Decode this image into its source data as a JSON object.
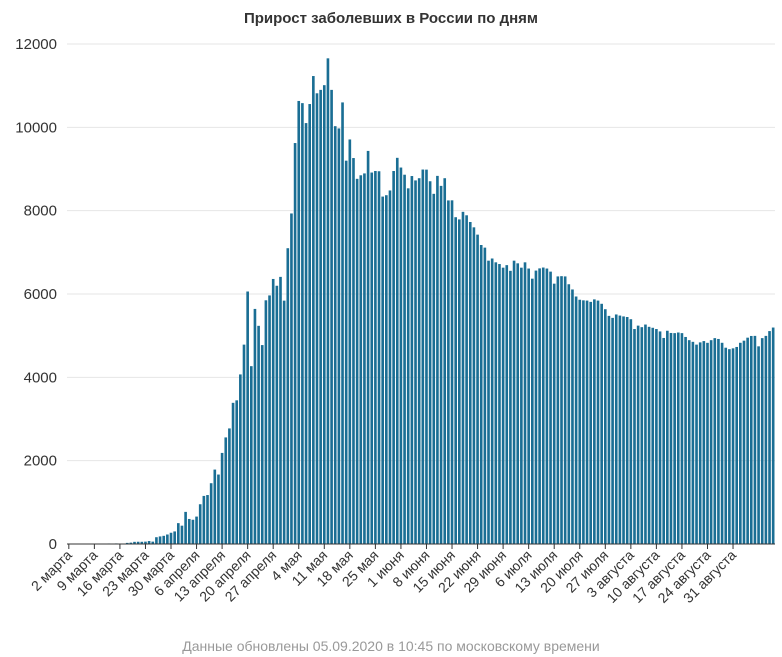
{
  "chart_data": {
    "type": "bar",
    "title": "Прирост заболевших в России по дням",
    "footer": "Данные обновлены 05.09.2020 в 10:45 по московскому времени",
    "bar_color": "#1a6e94",
    "grid_color": "#e6e6e6",
    "axis_color": "#333333",
    "ylim": [
      0,
      12000
    ],
    "yticks": [
      0,
      2000,
      4000,
      6000,
      8000,
      10000,
      12000
    ],
    "grid": true,
    "legend": "none",
    "x_start": "2020-03-02",
    "xtick_labels": [
      "2 марта",
      "9 марта",
      "16 марта",
      "23 марта",
      "30 марта",
      "6 апреля",
      "13 апреля",
      "20 апреля",
      "27 апреля",
      "4 мая",
      "11 мая",
      "18 мая",
      "25 мая",
      "1 июня",
      "8 июня",
      "15 июня",
      "22 июня",
      "29 июня",
      "6 июля",
      "13 июля",
      "20 июля",
      "27 июля",
      "3 августа",
      "10 августа",
      "17 августа",
      "24 августа",
      "31 августа"
    ],
    "values": [
      0,
      1,
      0,
      0,
      0,
      0,
      0,
      0,
      0,
      6,
      6,
      13,
      2,
      14,
      8,
      6,
      27,
      33,
      52,
      54,
      53,
      57,
      71,
      57,
      163,
      182,
      196,
      228,
      270,
      302,
      501,
      440,
      771,
      601,
      582,
      658,
      954,
      1154,
      1175,
      1459,
      1786,
      1667,
      2186,
      2558,
      2774,
      3388,
      3448,
      4070,
      4785,
      6060,
      4268,
      5642,
      5236,
      4774,
      5849,
      5966,
      6361,
      6198,
      6411,
      5841,
      7099,
      7933,
      9623,
      10633,
      10581,
      10102,
      10559,
      11231,
      10817,
      10899,
      11012,
      11656,
      10899,
      10028,
      9974,
      10598,
      9200,
      9709,
      9263,
      8764,
      8849,
      8894,
      9434,
      8915,
      8952,
      8946,
      8338,
      8371,
      8485,
      8952,
      9268,
      9035,
      8863,
      8536,
      8831,
      8726,
      8779,
      8987,
      8985,
      8706,
      8404,
      8835,
      8595,
      8779,
      8246,
      8248,
      7843,
      7790,
      7972,
      7889,
      7728,
      7600,
      7425,
      7176,
      7113,
      6800,
      6852,
      6760,
      6719,
      6632,
      6693,
      6556,
      6800,
      6736,
      6632,
      6760,
      6611,
      6368,
      6562,
      6615,
      6635,
      6611,
      6537,
      6248,
      6422,
      6428,
      6422,
      6234,
      6109,
      5940,
      5862,
      5848,
      5842,
      5811,
      5871,
      5842,
      5765,
      5635,
      5475,
      5427,
      5509,
      5482,
      5462,
      5448,
      5395,
      5159,
      5241,
      5204,
      5267,
      5212,
      5189,
      5159,
      5102,
      4945,
      5118,
      5065,
      5061,
      5076,
      5061,
      4969,
      4892,
      4852,
      4785,
      4839,
      4870,
      4828,
      4892,
      4941,
      4921,
      4829,
      4711,
      4676,
      4696,
      4729,
      4829,
      4880,
      4952,
      4993,
      4995,
      4744,
      4941,
      4995,
      5110,
      5195
    ]
  }
}
